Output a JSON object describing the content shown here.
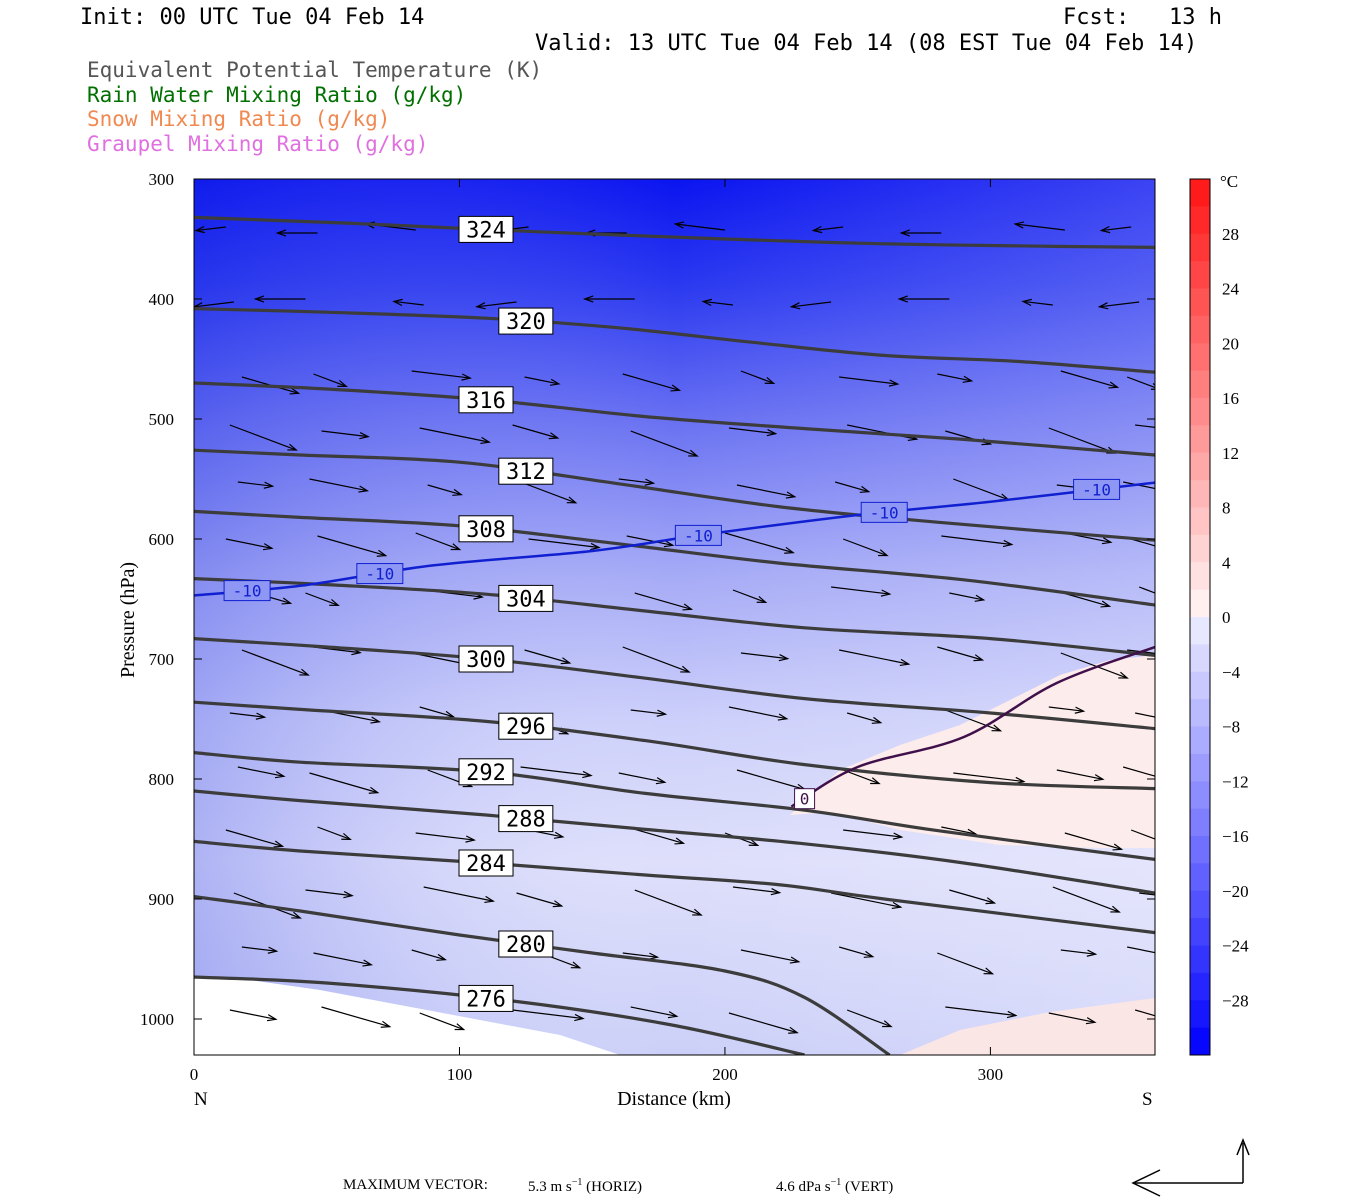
{
  "header": {
    "init": "Init: 00 UTC Tue 04 Feb 14",
    "fcst": "Fcst:   13 h",
    "valid": "Valid: 13 UTC Tue 04 Feb 14 (08 EST Tue 04 Feb 14)"
  },
  "legend": [
    {
      "label": "Equivalent Potential Temperature (K)",
      "color": "#555555"
    },
    {
      "label": "Rain Water Mixing Ratio (g/kg)",
      "color": "#007000"
    },
    {
      "label": "Snow Mixing Ratio (g/kg)",
      "color": "#f08850"
    },
    {
      "label": "Graupel Mixing Ratio (g/kg)",
      "color": "#e070e0"
    }
  ],
  "chart_data": {
    "type": "cross-section",
    "xlabel": "Distance (km)",
    "ylabel": "Pressure (hPa)",
    "xlim": [
      0,
      362
    ],
    "ylim": [
      300,
      1030
    ],
    "y_scale": "linear, inverted (pressure)",
    "x_ticks": [
      "0",
      "100",
      "200",
      "300"
    ],
    "y_ticks": [
      "300",
      "400",
      "500",
      "600",
      "700",
      "800",
      "900",
      "1000"
    ],
    "x_endpoints": {
      "left": "N",
      "right": "S"
    },
    "colorbar": {
      "unit": "°C",
      "labels": [
        "28",
        "24",
        "20",
        "16",
        "12",
        "8",
        "4",
        "0",
        "-4",
        "-8",
        "-12",
        "-16",
        "-20",
        "-24",
        "-28"
      ],
      "min": -32,
      "max": 32
    },
    "theta_e_contours": [
      {
        "value": 324,
        "label": "324",
        "points": [
          [
            0,
            332
          ],
          [
            60,
            337
          ],
          [
            130,
            344
          ],
          [
            200,
            350
          ],
          [
            260,
            354
          ],
          [
            320,
            356
          ],
          [
            362,
            357
          ]
        ]
      },
      {
        "value": 320,
        "label": "320",
        "points": [
          [
            0,
            408
          ],
          [
            50,
            411
          ],
          [
            110,
            416
          ],
          [
            160,
            424
          ],
          [
            210,
            436
          ],
          [
            260,
            447
          ],
          [
            310,
            452
          ],
          [
            362,
            461
          ]
        ]
      },
      {
        "value": 316,
        "label": "316",
        "points": [
          [
            0,
            470
          ],
          [
            50,
            475
          ],
          [
            110,
            484
          ],
          [
            170,
            498
          ],
          [
            230,
            508
          ],
          [
            290,
            517
          ],
          [
            362,
            530
          ]
        ]
      },
      {
        "value": 312,
        "label": "312",
        "points": [
          [
            0,
            526
          ],
          [
            40,
            530
          ],
          [
            100,
            536
          ],
          [
            160,
            554
          ],
          [
            220,
            573
          ],
          [
            280,
            586
          ],
          [
            362,
            601
          ]
        ]
      },
      {
        "value": 308,
        "label": "308",
        "points": [
          [
            0,
            577
          ],
          [
            40,
            582
          ],
          [
            100,
            589
          ],
          [
            160,
            604
          ],
          [
            220,
            620
          ],
          [
            290,
            634
          ],
          [
            362,
            655
          ]
        ]
      },
      {
        "value": 304,
        "label": "304",
        "points": [
          [
            0,
            633
          ],
          [
            50,
            638
          ],
          [
            110,
            646
          ],
          [
            170,
            660
          ],
          [
            230,
            674
          ],
          [
            300,
            683
          ],
          [
            362,
            697
          ]
        ]
      },
      {
        "value": 300,
        "label": "300",
        "points": [
          [
            0,
            683
          ],
          [
            50,
            690
          ],
          [
            110,
            700
          ],
          [
            170,
            716
          ],
          [
            230,
            733
          ],
          [
            300,
            745
          ],
          [
            362,
            758
          ]
        ]
      },
      {
        "value": 296,
        "label": "296",
        "points": [
          [
            0,
            736
          ],
          [
            40,
            742
          ],
          [
            110,
            752
          ],
          [
            170,
            768
          ],
          [
            230,
            788
          ],
          [
            300,
            803
          ],
          [
            362,
            808
          ]
        ]
      },
      {
        "value": 292,
        "label": "292",
        "points": [
          [
            0,
            778
          ],
          [
            40,
            786
          ],
          [
            110,
            794
          ],
          [
            170,
            812
          ],
          [
            230,
            826
          ],
          [
            280,
            843
          ],
          [
            362,
            867
          ]
        ]
      },
      {
        "value": 288,
        "label": "288",
        "points": [
          [
            0,
            810
          ],
          [
            40,
            818
          ],
          [
            110,
            830
          ],
          [
            170,
            842
          ],
          [
            230,
            854
          ],
          [
            290,
            870
          ],
          [
            362,
            895
          ]
        ]
      },
      {
        "value": 284,
        "label": "284",
        "points": [
          [
            0,
            852
          ],
          [
            40,
            860
          ],
          [
            110,
            870
          ],
          [
            170,
            880
          ],
          [
            220,
            888
          ],
          [
            260,
            900
          ],
          [
            362,
            928
          ]
        ]
      },
      {
        "value": 280,
        "label": "280",
        "points": [
          [
            0,
            898
          ],
          [
            40,
            910
          ],
          [
            100,
            930
          ],
          [
            150,
            945
          ],
          [
            200,
            960
          ],
          [
            230,
            982
          ],
          [
            262,
            1030
          ]
        ]
      },
      {
        "value": 276,
        "label": "276",
        "points": [
          [
            0,
            965
          ],
          [
            50,
            970
          ],
          [
            120,
            985
          ],
          [
            180,
            1005
          ],
          [
            230,
            1030
          ]
        ]
      }
    ],
    "temperature_contours": [
      {
        "value": -10,
        "label": "-10",
        "points": [
          [
            0,
            647
          ],
          [
            40,
            639
          ],
          [
            90,
            622
          ],
          [
            150,
            610
          ],
          [
            190,
            597
          ],
          [
            250,
            580
          ],
          [
            300,
            569
          ],
          [
            362,
            553
          ]
        ]
      },
      {
        "value": 0,
        "label": "0",
        "points": [
          [
            225,
            823
          ],
          [
            250,
            790
          ],
          [
            290,
            765
          ],
          [
            325,
            720
          ],
          [
            362,
            690
          ]
        ]
      }
    ],
    "max_vector": {
      "label": "MAXIMUM VECTOR:",
      "horiz": "5.3 m s",
      "horiz_unit": "(HORIZ)",
      "vert": "4.6 dPa s",
      "vert_unit": "(VERT)"
    }
  }
}
